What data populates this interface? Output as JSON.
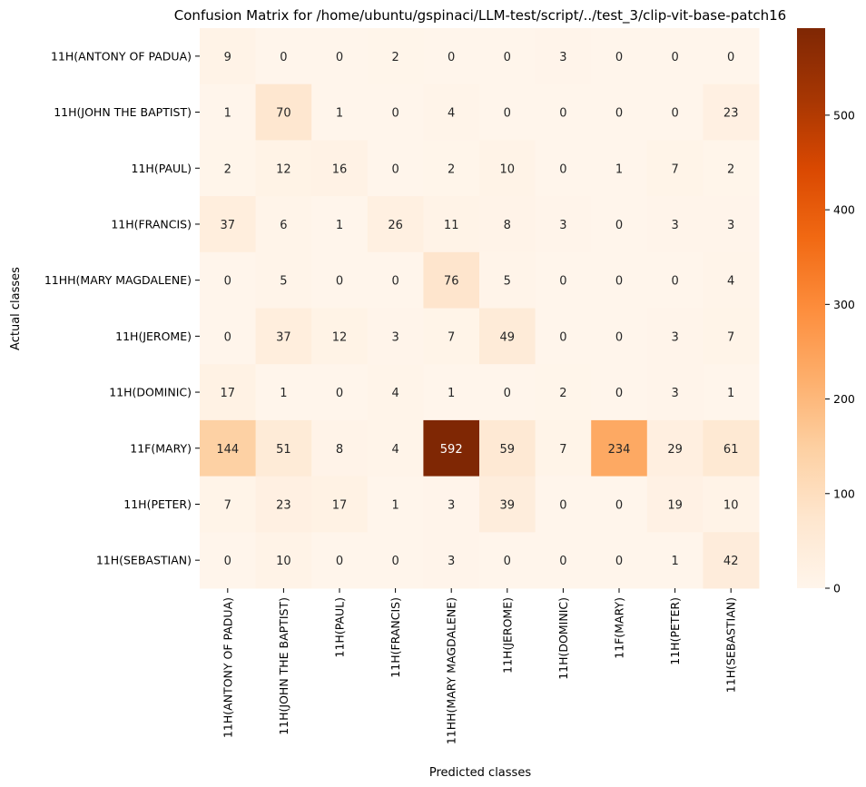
{
  "chart_data": {
    "type": "heatmap",
    "title": "Confusion Matrix for /home/ubuntu/gspinaci/LLM-test/script/../test_3/clip-vit-base-patch16",
    "xlabel": "Predicted classes",
    "ylabel": "Actual classes",
    "row_labels": [
      "11H(ANTONY OF PADUA)",
      "11H(JOHN THE BAPTIST)",
      "11H(PAUL)",
      "11H(FRANCIS)",
      "11HH(MARY MAGDALENE)",
      "11H(JEROME)",
      "11H(DOMINIC)",
      "11F(MARY)",
      "11H(PETER)",
      "11H(SEBASTIAN)"
    ],
    "col_labels": [
      "11H(ANTONY OF PADUA)",
      "11H(JOHN THE BAPTIST)",
      "11H(PAUL)",
      "11H(FRANCIS)",
      "11HH(MARY MAGDALENE)",
      "11H(JEROME)",
      "11H(DOMINIC)",
      "11F(MARY)",
      "11H(PETER)",
      "11H(SEBASTIAN)"
    ],
    "values": [
      [
        9,
        0,
        0,
        2,
        0,
        0,
        3,
        0,
        0,
        0
      ],
      [
        1,
        70,
        1,
        0,
        4,
        0,
        0,
        0,
        0,
        23
      ],
      [
        2,
        12,
        16,
        0,
        2,
        10,
        0,
        1,
        7,
        2
      ],
      [
        37,
        6,
        1,
        26,
        11,
        8,
        3,
        0,
        3,
        3
      ],
      [
        0,
        5,
        0,
        0,
        76,
        5,
        0,
        0,
        0,
        4
      ],
      [
        0,
        37,
        12,
        3,
        7,
        49,
        0,
        0,
        3,
        7
      ],
      [
        17,
        1,
        0,
        4,
        1,
        0,
        2,
        0,
        3,
        1
      ],
      [
        144,
        51,
        8,
        4,
        592,
        59,
        7,
        234,
        29,
        61
      ],
      [
        7,
        23,
        17,
        1,
        3,
        39,
        0,
        0,
        19,
        10
      ],
      [
        0,
        10,
        0,
        0,
        3,
        0,
        0,
        0,
        1,
        42
      ]
    ],
    "colormap": "Oranges",
    "vmin": 0,
    "vmax": 592,
    "colorbar_ticks": [
      0,
      100,
      200,
      300,
      400,
      500
    ]
  }
}
